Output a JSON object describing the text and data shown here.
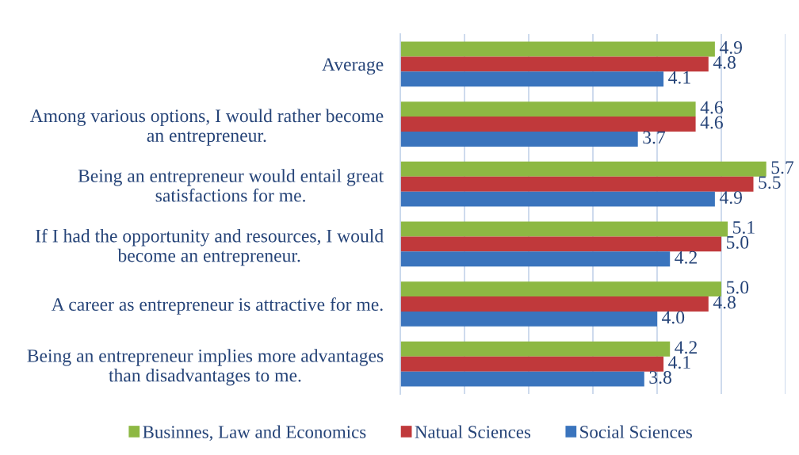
{
  "chart_data": {
    "type": "bar",
    "orientation": "horizontal",
    "categories": [
      "Average",
      "Among various options, I would rather become\nan entrepreneur.",
      "Being an entrepreneur would entail great\nsatisfactions for me.",
      "If I had the opportunity and resources, I would\nbecome an entrepreneur.",
      "A career as entrepreneur is attractive for me.",
      "Being an entrepreneur implies more advantages\nthan disadvantages to me."
    ],
    "series": [
      {
        "name": "Businnes, Law and Economics",
        "color": "#8db843",
        "values": [
          4.9,
          4.6,
          5.7,
          5.1,
          5.0,
          4.2
        ],
        "value_labels": [
          "4.9",
          "4.6",
          "5.7",
          "5.1",
          "5.0",
          "4.2"
        ]
      },
      {
        "name": "Natual Sciences",
        "color": "#c0393b",
        "values": [
          4.8,
          4.6,
          5.5,
          5.0,
          4.8,
          4.1
        ],
        "value_labels": [
          "4.8",
          "4.6",
          "5.5",
          "5.0",
          "4.8",
          "4.1"
        ]
      },
      {
        "name": "Social Sciences",
        "color": "#3a74bd",
        "values": [
          4.1,
          3.7,
          4.9,
          4.2,
          4.0,
          3.8
        ],
        "value_labels": [
          "4.1",
          "3.7",
          "4.9",
          "4.2",
          "4.0",
          "3.8"
        ]
      }
    ],
    "xlim": [
      0,
      6
    ],
    "xticks": [
      {
        "value": 0,
        "label": null
      },
      {
        "value": 1,
        "label": null
      },
      {
        "value": 2,
        "label": null
      },
      {
        "value": 3,
        "label": null
      },
      {
        "value": 4,
        "label": null
      },
      {
        "value": 5,
        "label": null
      },
      {
        "value": 6,
        "label": null
      }
    ],
    "tick_labels": "y",
    "grid": "x",
    "legend": "bottom"
  }
}
